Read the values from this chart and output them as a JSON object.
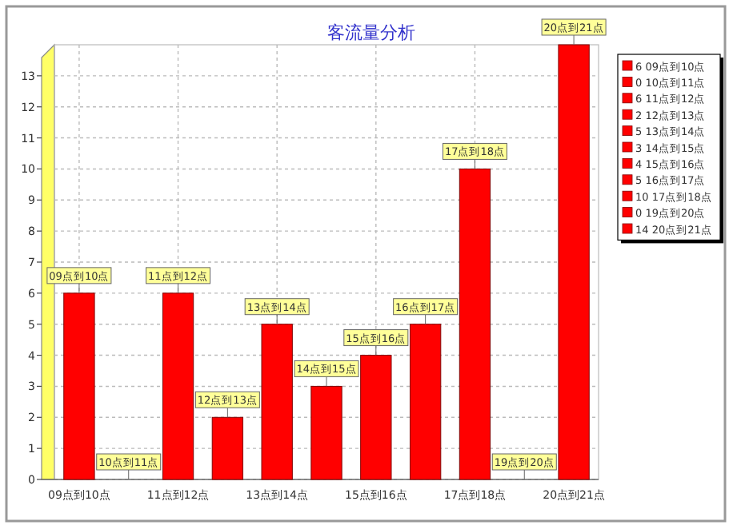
{
  "chart_data": [
    {
      "type": "bar",
      "title": "客流量分析",
      "categories": [
        "09点到10点",
        "10点到11点",
        "11点到12点",
        "12点到13点",
        "13点到14点",
        "14点到15点",
        "15点到16点",
        "16点到17点",
        "17点到18点",
        "19点到20点",
        "20点到21点"
      ],
      "values": [
        6,
        0,
        6,
        2,
        5,
        3,
        4,
        5,
        10,
        0,
        14
      ],
      "color": "#ff0000",
      "ylim": [
        0,
        14
      ],
      "yticks": [
        0,
        1,
        2,
        3,
        4,
        5,
        6,
        7,
        8,
        9,
        10,
        11,
        12,
        13
      ],
      "grid": true
    },
    {
      "type": "other",
      "annotations": [
        "6 09点到10点",
        "0 10点到11点",
        "6 11点到12点",
        "2 12点到13点",
        "5 13点到14点",
        "3 14点到15点",
        "4 15点到16点",
        "5 16点到17点",
        "10 17点到18点",
        "0 19点到20点",
        "14 20点到21点"
      ]
    }
  ]
}
